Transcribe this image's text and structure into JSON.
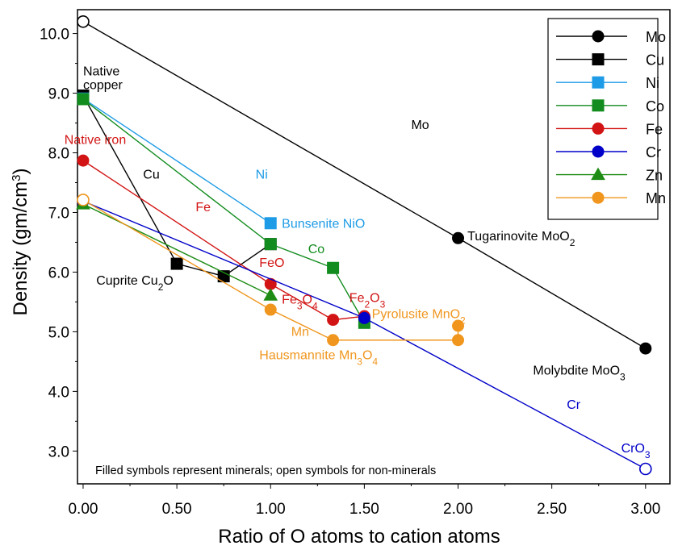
{
  "chart_data": {
    "type": "line",
    "title": "",
    "xlabel": "Ratio of O atoms to cation atoms",
    "ylabel": "Density (gm/cm3)",
    "xlim": [
      -0.03,
      3.13
    ],
    "ylim": [
      2.45,
      10.4
    ],
    "x_ticks": [
      "0.00",
      "0.50",
      "1.00",
      "1.50",
      "2.00",
      "2.50",
      "3.00"
    ],
    "y_ticks": [
      "3.0",
      "4.0",
      "5.0",
      "6.0",
      "7.0",
      "8.0",
      "9.0",
      "10.0"
    ],
    "grid": false,
    "legend_position": "top-right",
    "note": "Filled symbols represent minerals; open symbols for non-minerals",
    "series": [
      {
        "name": "Mo",
        "color": "#000000",
        "marker": "circle",
        "points": [
          {
            "x": 0,
            "y": 10.2,
            "open": true
          },
          {
            "x": 2.0,
            "y": 6.57
          },
          {
            "x": 3.0,
            "y": 4.72
          }
        ]
      },
      {
        "name": "Cu",
        "color": "#000000",
        "marker": "square",
        "points": [
          {
            "x": 0,
            "y": 8.96
          },
          {
            "x": 0.5,
            "y": 6.14
          },
          {
            "x": 0.75,
            "y": 5.93
          },
          {
            "x": 1.0,
            "y": 6.47
          }
        ]
      },
      {
        "name": "Ni",
        "color": "#1e9be6",
        "marker": "square",
        "points": [
          {
            "x": 0,
            "y": 8.91
          },
          {
            "x": 1.0,
            "y": 6.82
          }
        ]
      },
      {
        "name": "Co",
        "color": "#128c1e",
        "marker": "square",
        "points": [
          {
            "x": 0,
            "y": 8.9
          },
          {
            "x": 1.0,
            "y": 6.47
          },
          {
            "x": 1.333,
            "y": 6.07
          },
          {
            "x": 1.5,
            "y": 5.15
          }
        ]
      },
      {
        "name": "Fe",
        "color": "#d21414",
        "marker": "circle",
        "points": [
          {
            "x": 0,
            "y": 7.87
          },
          {
            "x": 1.0,
            "y": 5.8
          },
          {
            "x": 1.333,
            "y": 5.2
          },
          {
            "x": 1.5,
            "y": 5.26
          }
        ]
      },
      {
        "name": "Cr",
        "color": "#0000c8",
        "marker": "circle",
        "points": [
          {
            "x": 0,
            "y": 7.19
          },
          {
            "x": 1.5,
            "y": 5.23
          },
          {
            "x": 3.0,
            "y": 2.7,
            "open": true
          }
        ]
      },
      {
        "name": "Zn",
        "color": "#1e8c14",
        "marker": "triangle",
        "points": [
          {
            "x": 0,
            "y": 7.14
          },
          {
            "x": 1.0,
            "y": 5.61
          }
        ]
      },
      {
        "name": "Mn",
        "color": "#f0961e",
        "marker": "circle",
        "points": [
          {
            "x": 0,
            "y": 7.21,
            "open": true
          },
          {
            "x": 1.0,
            "y": 5.37
          },
          {
            "x": 1.333,
            "y": 4.86
          },
          {
            "x": 2.0,
            "y": 4.86
          },
          {
            "x": 2.0,
            "y": 5.1
          }
        ]
      }
    ],
    "annotations": [
      {
        "id": "native-copper-line1",
        "text": "Native",
        "x": 0.0,
        "y": 9.3,
        "color": "#000000"
      },
      {
        "id": "native-copper-line2",
        "text": "copper",
        "x": 0.0,
        "y": 9.07,
        "color": "#000000"
      },
      {
        "id": "native-iron",
        "text": "Native iron",
        "x": -0.1,
        "y": 8.15,
        "color": "#d21414"
      },
      {
        "id": "mo-line-label",
        "text": "Mo",
        "x": 1.75,
        "y": 8.4,
        "color": "#000000"
      },
      {
        "id": "cu-line-label",
        "text": "Cu",
        "x": 0.32,
        "y": 7.57,
        "color": "#000000"
      },
      {
        "id": "ni-line-label",
        "text": "Ni",
        "x": 0.92,
        "y": 7.57,
        "color": "#1e9be6"
      },
      {
        "id": "fe-line-label",
        "text": "Fe",
        "x": 0.6,
        "y": 7.02,
        "color": "#d21414"
      },
      {
        "id": "bunsenite",
        "text": "Bunsenite NiO",
        "x": 1.06,
        "y": 6.74,
        "color": "#1e9be6"
      },
      {
        "id": "co-line-label",
        "text": "Co",
        "x": 1.2,
        "y": 6.32,
        "color": "#128c1e"
      },
      {
        "id": "cuprite",
        "text": "Cuprite Cu",
        "sub": "2",
        "after": "O",
        "x": 0.07,
        "y": 5.79,
        "color": "#000000"
      },
      {
        "id": "feo",
        "text": "FeO",
        "x": 0.94,
        "y": 6.09,
        "color": "#d21414"
      },
      {
        "id": "fe3o4",
        "text": "Fe",
        "sub": "3",
        "after": "O",
        "sub2": "4",
        "x": 1.06,
        "y": 5.47,
        "color": "#d21414"
      },
      {
        "id": "fe2o3",
        "text": "Fe",
        "sub": "2",
        "after": "O",
        "sub2": "3",
        "x": 1.42,
        "y": 5.5,
        "color": "#d21414"
      },
      {
        "id": "pyrolusite",
        "text": "Pyrolusite MnO",
        "sub": "2",
        "x": 1.54,
        "y": 5.23,
        "color": "#f0961e"
      },
      {
        "id": "mn-line-label",
        "text": "Mn",
        "x": 1.11,
        "y": 4.93,
        "color": "#f0961e"
      },
      {
        "id": "hausmannite",
        "text": "Hausmannite Mn",
        "sub": "3",
        "after": "O",
        "sub2": "4",
        "x": 0.94,
        "y": 4.54,
        "color": "#f0961e"
      },
      {
        "id": "tugarinovite",
        "text": "Tugarinovite MoO",
        "sub": "2",
        "x": 2.05,
        "y": 6.53,
        "color": "#000000"
      },
      {
        "id": "molybdite",
        "text": "Molybdite MoO",
        "sub": "3",
        "x": 2.4,
        "y": 4.28,
        "color": "#000000"
      },
      {
        "id": "cr-line-label",
        "text": "Cr",
        "x": 2.58,
        "y": 3.71,
        "color": "#0000c8"
      },
      {
        "id": "cro3",
        "text": "CrO",
        "sub": "3",
        "x": 2.87,
        "y": 2.98,
        "color": "#0000c8"
      }
    ]
  }
}
